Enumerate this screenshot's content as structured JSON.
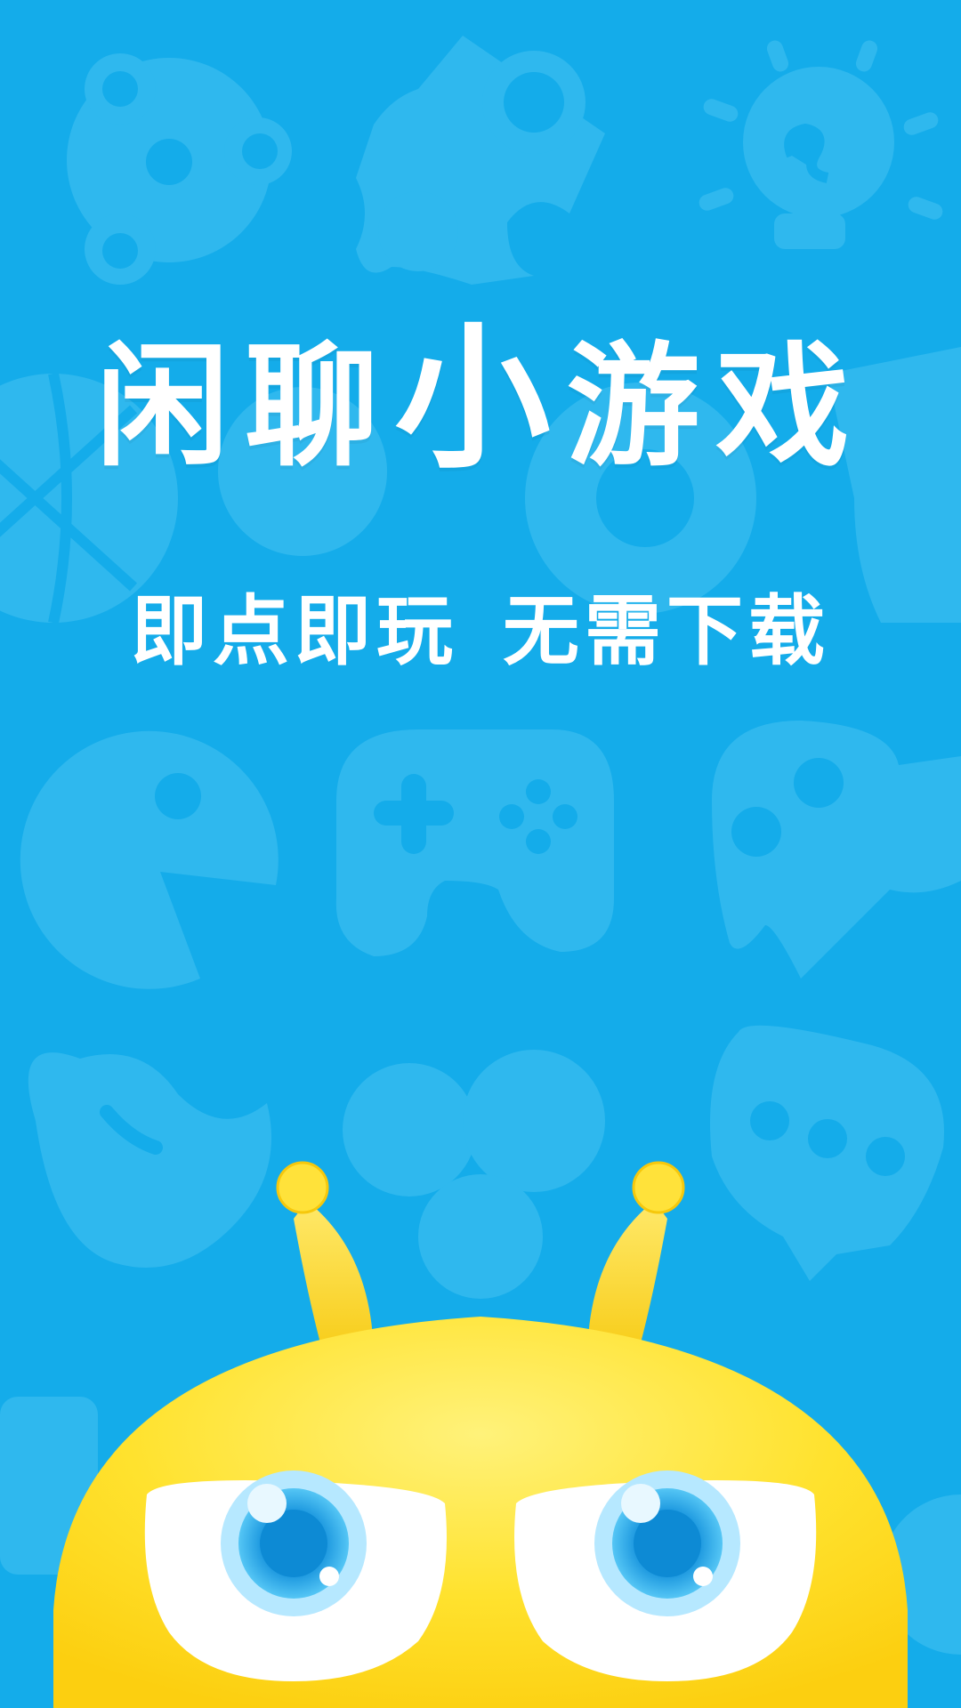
{
  "splash": {
    "title_parts": [
      "闲",
      "聊",
      "小",
      "游",
      "戏"
    ],
    "tagline_left": [
      "即",
      "点",
      "即",
      "玩"
    ],
    "tagline_right": [
      "无",
      "需",
      "下",
      "载"
    ]
  },
  "colors": {
    "background": "#14acea",
    "pattern": "#2fb8ee",
    "text": "#ffffff",
    "mascot_body": "#ffe22e",
    "mascot_eye": "#1f8fd8"
  },
  "icons": {
    "background_pattern": [
      "gear-icon",
      "puzzle-icon",
      "lightbulb-icon",
      "basketball-icon",
      "pacman-icon",
      "gamepad-icon",
      "ghost-icon",
      "bean-icon",
      "clover-icon",
      "speech-bubble-icon"
    ],
    "mascot": "yellow-bug-mascot"
  }
}
